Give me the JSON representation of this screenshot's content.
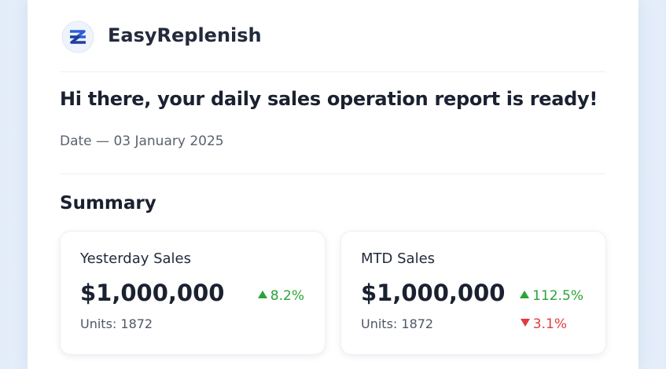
{
  "header": {
    "brand": "EasyReplenish"
  },
  "greeting": "Hi there, your daily sales operation report is ready!",
  "date": "Date — 03 January 2025",
  "summary": {
    "title": "Summary",
    "cards": [
      {
        "label": "Yesterday Sales",
        "amount": "$1,000,000",
        "changes": [
          "8.2%"
        ],
        "units": "Units: 1872"
      },
      {
        "label": "MTD Sales",
        "amount": "$1,000,000",
        "changes": [
          "112.5%",
          "3.1%"
        ],
        "units": "Units: 1872"
      }
    ]
  }
}
